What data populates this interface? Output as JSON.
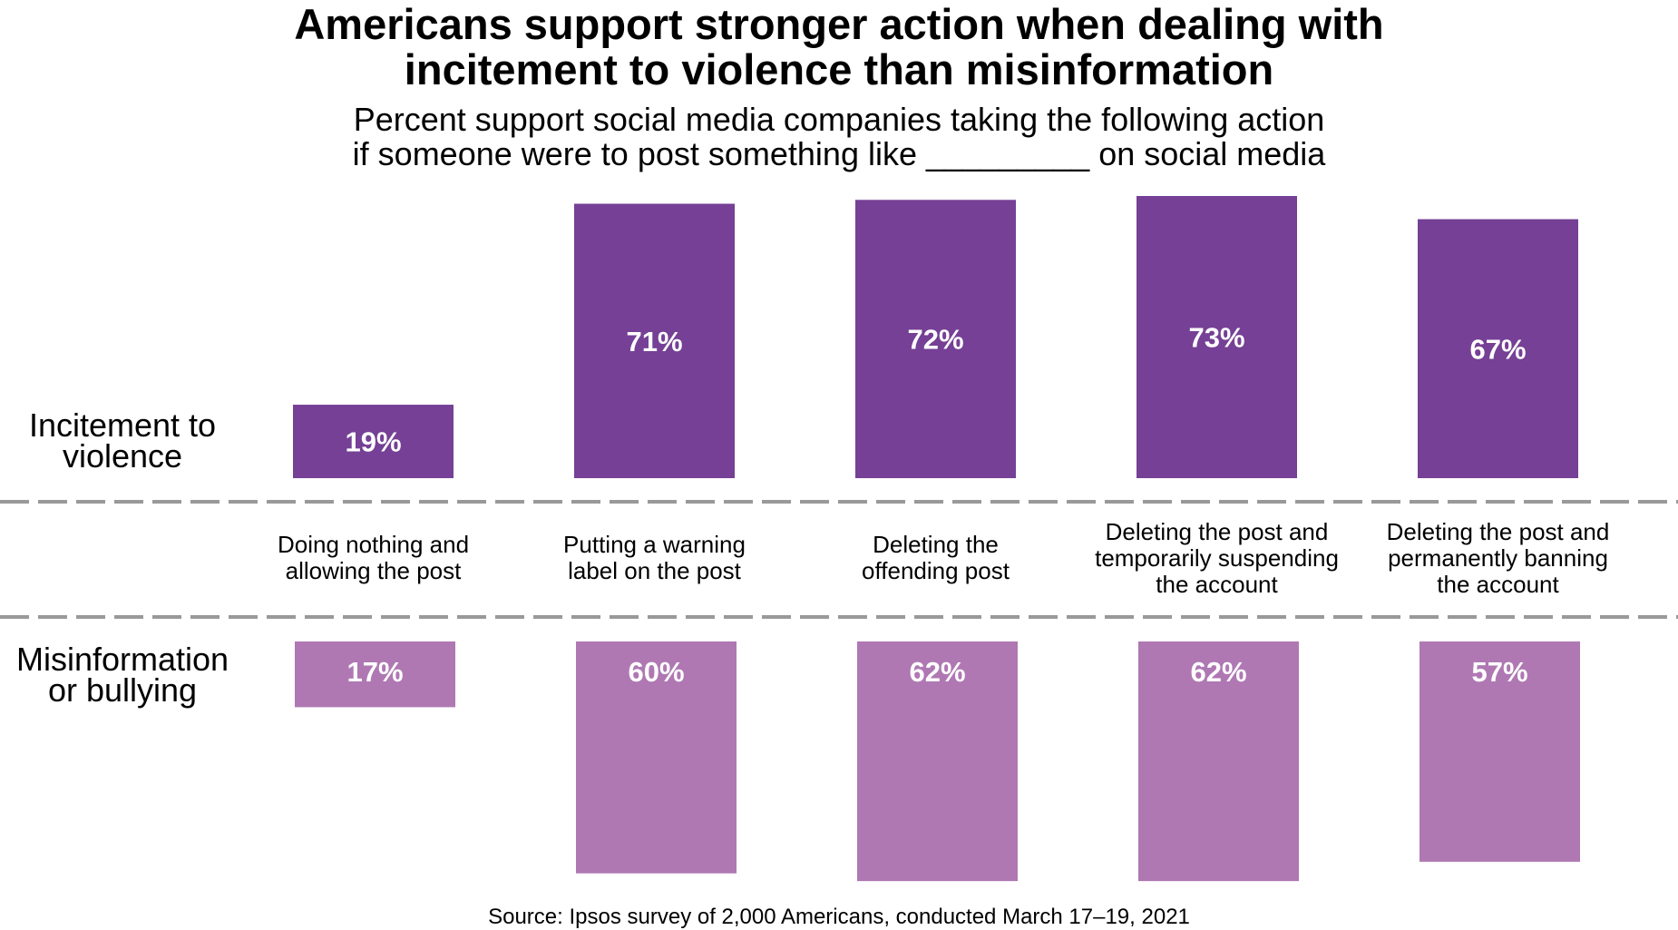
{
  "chart_data": {
    "type": "bar",
    "title": "Americans support stronger action when dealing with incitement to violence than misinformation",
    "title_lines": [
      "Americans support stronger action when dealing with",
      "incitement to violence than misinformation"
    ],
    "subtitle_lines": [
      "Percent support social media companies taking the following action",
      "if someone were to post something like _________ on social media"
    ],
    "categories": [
      [
        "Doing nothing and",
        "allowing the post"
      ],
      [
        "Putting a warning",
        "label on the post"
      ],
      [
        "Deleting the",
        "offending post"
      ],
      [
        "Deleting the post and",
        "temporarily suspending",
        "the account"
      ],
      [
        "Deleting the post and",
        "permanently banning",
        "the account"
      ]
    ],
    "series": [
      {
        "name": "Incitement to violence",
        "name_lines": [
          "Incitement to",
          "violence"
        ],
        "values": [
          19,
          71,
          72,
          73,
          67
        ],
        "labels": [
          "19%",
          "71%",
          "72%",
          "73%",
          "67%"
        ],
        "color": "#754095",
        "direction": "up"
      },
      {
        "name": "Misinformation or bullying",
        "name_lines": [
          "Misinformation",
          "or bullying"
        ],
        "values": [
          17,
          60,
          62,
          62,
          57
        ],
        "labels": [
          "17%",
          "60%",
          "62%",
          "62%",
          "57%"
        ],
        "color": "#AF78B3",
        "direction": "down"
      }
    ],
    "unit": "%",
    "grid": false,
    "source": "Source: Ipsos survey of 2,000 Americans, conducted March 17–19, 2021"
  }
}
